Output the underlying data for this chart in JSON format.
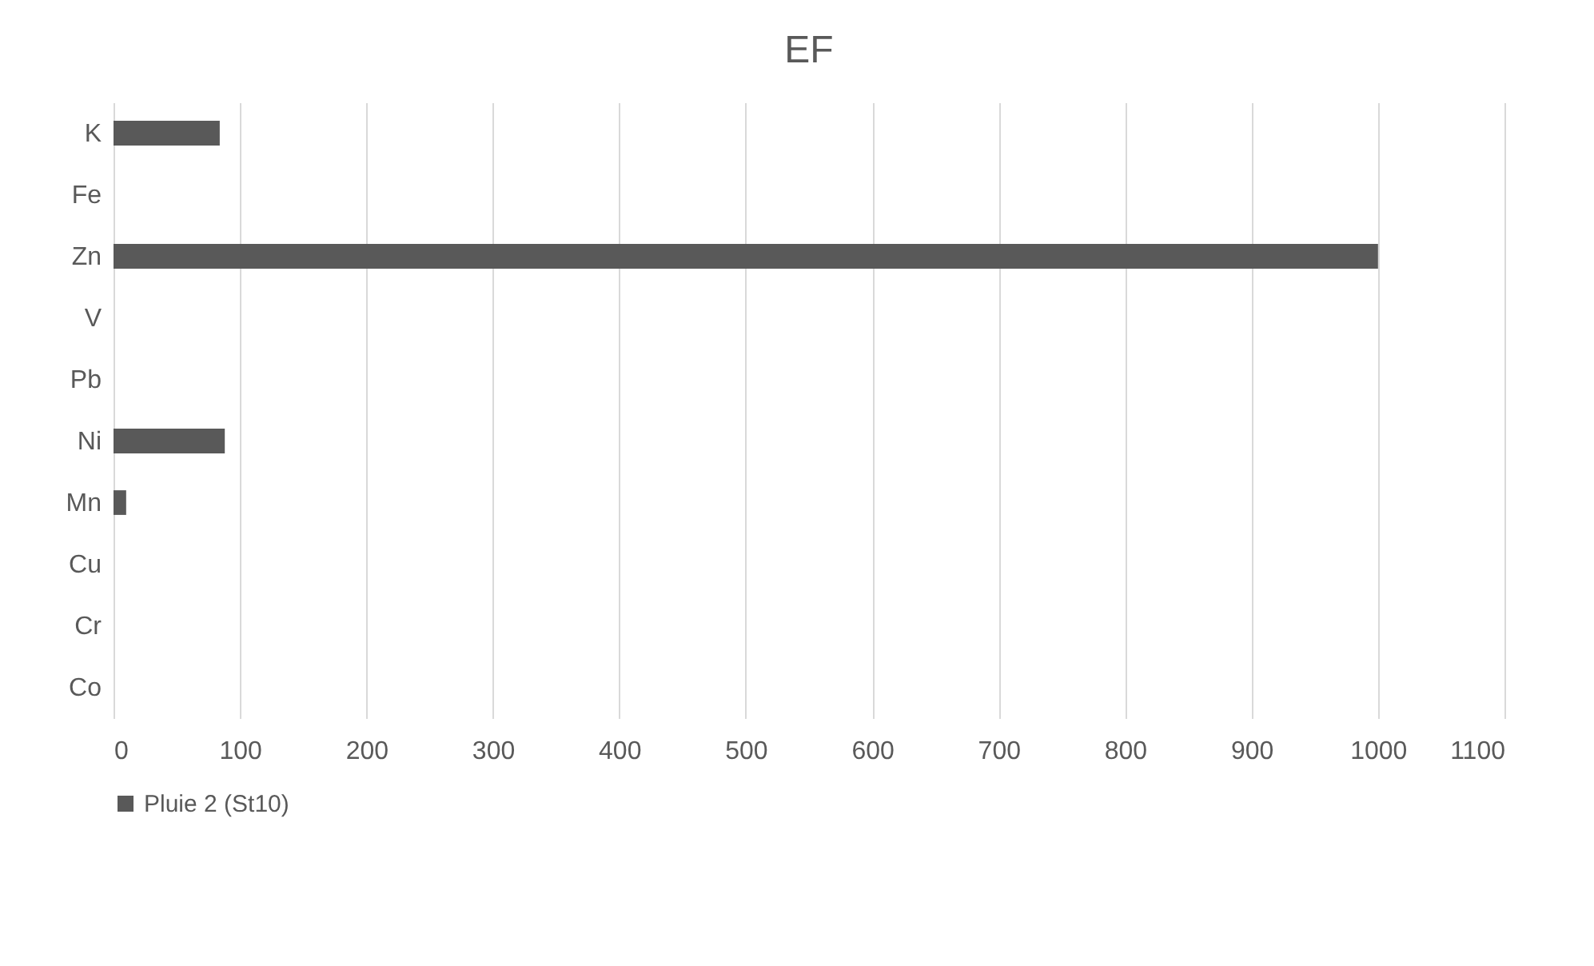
{
  "chart_data": {
    "type": "bar",
    "orientation": "horizontal",
    "title": "EF",
    "categories": [
      "K",
      "Fe",
      "Zn",
      "V",
      "Pb",
      "Ni",
      "Mn",
      "Cu",
      "Cr",
      "Co"
    ],
    "series": [
      {
        "name": "Pluie 2 (St10)",
        "color": "#595959",
        "values": [
          84,
          0,
          1000,
          0,
          0,
          88,
          10,
          0,
          0,
          0
        ]
      }
    ],
    "xlim": [
      0,
      1100
    ],
    "xticks": [
      0,
      100,
      200,
      300,
      400,
      500,
      600,
      700,
      800,
      900,
      1000,
      1100
    ],
    "grid": "x",
    "legend": "bottom"
  }
}
